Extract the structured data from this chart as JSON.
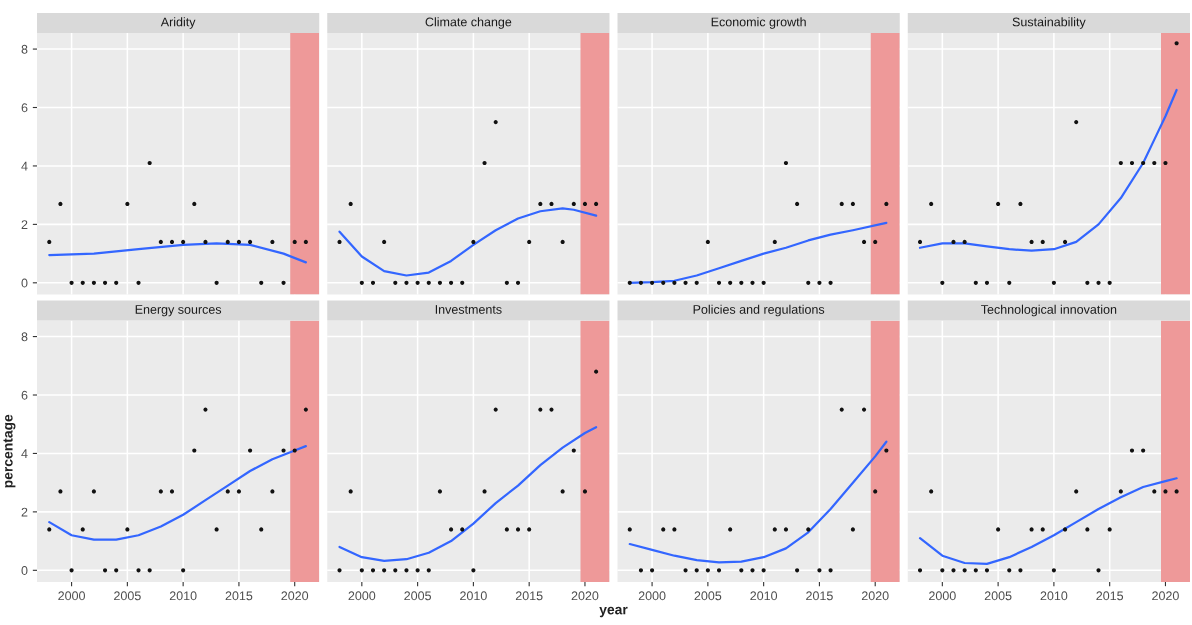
{
  "chart_data": [
    {
      "type": "scatter",
      "title": "Aridity",
      "tick_labels": "y",
      "x": [
        1998,
        1999,
        2000,
        2001,
        2002,
        2003,
        2004,
        2005,
        2006,
        2007,
        2008,
        2009,
        2010,
        2011,
        2012,
        2013,
        2014,
        2015,
        2016,
        2017,
        2018,
        2019,
        2020,
        2021
      ],
      "xlim": [
        1996.9,
        2022.2
      ],
      "ylim": [
        -0.4,
        8.55
      ],
      "xticks": [
        2000,
        2005,
        2010,
        2015,
        2020
      ],
      "yticks": [
        0,
        2,
        4,
        6,
        8
      ],
      "grid": true,
      "bands": [
        {
          "axis": "x",
          "from": 2019.6,
          "to": 2022.2,
          "color": "#ee9999"
        }
      ],
      "series": [
        {
          "marker": "circle",
          "color": "#111111",
          "values": [
            1.4,
            2.7,
            0,
            0,
            0,
            0,
            0,
            2.7,
            0,
            4.1,
            1.4,
            1.4,
            1.4,
            2.7,
            1.4,
            0,
            1.4,
            1.4,
            1.4,
            0,
            1.4,
            0,
            1.4,
            1.4
          ]
        },
        {
          "type": "line",
          "marker": "none",
          "color": "#3366ff",
          "x": [
            1998,
            2002,
            2006,
            2010,
            2013,
            2016,
            2019,
            2021
          ],
          "values": [
            0.95,
            1.0,
            1.15,
            1.3,
            1.35,
            1.3,
            1.0,
            0.7
          ]
        }
      ]
    },
    {
      "type": "scatter",
      "title": "Climate change",
      "tick_labels": false,
      "x": [
        1998,
        1999,
        2000,
        2001,
        2002,
        2003,
        2004,
        2005,
        2006,
        2007,
        2008,
        2009,
        2010,
        2011,
        2012,
        2013,
        2014,
        2015,
        2016,
        2017,
        2018,
        2019,
        2020,
        2021
      ],
      "xlim": [
        1996.9,
        2022.2
      ],
      "ylim": [
        -0.4,
        8.55
      ],
      "xticks": [
        2000,
        2005,
        2010,
        2015,
        2020
      ],
      "yticks": [
        0,
        2,
        4,
        6,
        8
      ],
      "grid": true,
      "bands": [
        {
          "axis": "x",
          "from": 2019.6,
          "to": 2022.2,
          "color": "#ee9999"
        }
      ],
      "series": [
        {
          "marker": "circle",
          "color": "#111111",
          "values": [
            1.4,
            2.7,
            0,
            0,
            1.4,
            0,
            0,
            0,
            0,
            0,
            0,
            0,
            1.4,
            4.1,
            5.5,
            0,
            0,
            1.4,
            2.7,
            2.7,
            1.4,
            2.7,
            2.7,
            2.7
          ]
        },
        {
          "type": "line",
          "marker": "none",
          "color": "#3366ff",
          "x": [
            1998,
            2000,
            2002,
            2004,
            2006,
            2008,
            2010,
            2012,
            2014,
            2016,
            2018,
            2019,
            2021
          ],
          "values": [
            1.75,
            0.9,
            0.4,
            0.25,
            0.35,
            0.75,
            1.3,
            1.8,
            2.2,
            2.45,
            2.55,
            2.5,
            2.3
          ]
        }
      ]
    },
    {
      "type": "scatter",
      "title": "Economic growth",
      "tick_labels": false,
      "x": [
        1998,
        1999,
        2000,
        2001,
        2002,
        2003,
        2004,
        2005,
        2006,
        2007,
        2008,
        2009,
        2010,
        2011,
        2012,
        2013,
        2014,
        2015,
        2016,
        2017,
        2018,
        2019,
        2020,
        2021
      ],
      "xlim": [
        1996.9,
        2022.2
      ],
      "ylim": [
        -0.4,
        8.55
      ],
      "xticks": [
        2000,
        2005,
        2010,
        2015,
        2020
      ],
      "yticks": [
        0,
        2,
        4,
        6,
        8
      ],
      "grid": true,
      "bands": [
        {
          "axis": "x",
          "from": 2019.6,
          "to": 2022.2,
          "color": "#ee9999"
        }
      ],
      "series": [
        {
          "marker": "circle",
          "color": "#111111",
          "values": [
            0,
            0,
            0,
            0,
            0,
            0,
            0,
            1.4,
            0,
            0,
            0,
            0,
            0,
            1.4,
            4.1,
            2.7,
            0,
            0,
            0,
            2.7,
            2.7,
            1.4,
            1.4,
            2.7
          ]
        },
        {
          "type": "line",
          "marker": "none",
          "color": "#3366ff",
          "x": [
            1998,
            2000,
            2002,
            2004,
            2006,
            2008,
            2010,
            2012,
            2014,
            2016,
            2018,
            2021
          ],
          "values": [
            0,
            0.02,
            0.07,
            0.25,
            0.5,
            0.75,
            1.0,
            1.2,
            1.45,
            1.65,
            1.8,
            2.05
          ]
        }
      ]
    },
    {
      "type": "scatter",
      "title": "Sustainability",
      "tick_labels": false,
      "x": [
        1998,
        1999,
        2000,
        2001,
        2002,
        2003,
        2004,
        2005,
        2006,
        2007,
        2008,
        2009,
        2010,
        2011,
        2012,
        2013,
        2014,
        2015,
        2016,
        2017,
        2018,
        2019,
        2020,
        2021
      ],
      "xlim": [
        1996.9,
        2022.2
      ],
      "ylim": [
        -0.4,
        8.55
      ],
      "xticks": [
        2000,
        2005,
        2010,
        2015,
        2020
      ],
      "yticks": [
        0,
        2,
        4,
        6,
        8
      ],
      "grid": true,
      "bands": [
        {
          "axis": "x",
          "from": 2019.6,
          "to": 2022.2,
          "color": "#ee9999"
        }
      ],
      "series": [
        {
          "marker": "circle",
          "color": "#111111",
          "values": [
            1.4,
            2.7,
            0,
            1.4,
            1.4,
            0,
            0,
            2.7,
            0,
            2.7,
            1.4,
            1.4,
            0,
            1.4,
            5.5,
            0,
            0,
            0,
            4.1,
            4.1,
            4.1,
            4.1,
            4.1,
            8.2
          ]
        },
        {
          "type": "line",
          "marker": "none",
          "color": "#3366ff",
          "x": [
            1998,
            2000,
            2002,
            2004,
            2006,
            2008,
            2010,
            2012,
            2014,
            2016,
            2018,
            2019,
            2020,
            2021
          ],
          "values": [
            1.2,
            1.35,
            1.35,
            1.25,
            1.15,
            1.1,
            1.15,
            1.4,
            2.0,
            2.9,
            4.1,
            4.9,
            5.7,
            6.6
          ]
        }
      ]
    },
    {
      "type": "scatter",
      "title": "Energy sources",
      "ylabel": "percentage",
      "x": [
        1998,
        1999,
        2000,
        2001,
        2002,
        2003,
        2004,
        2005,
        2006,
        2007,
        2008,
        2009,
        2010,
        2011,
        2012,
        2013,
        2014,
        2015,
        2016,
        2017,
        2018,
        2019,
        2020,
        2021
      ],
      "xlim": [
        1996.9,
        2022.2
      ],
      "ylim": [
        -0.4,
        8.55
      ],
      "xticks": [
        2000,
        2005,
        2010,
        2015,
        2020
      ],
      "yticks": [
        0,
        2,
        4,
        6,
        8
      ],
      "grid": true,
      "bands": [
        {
          "axis": "x",
          "from": 2019.6,
          "to": 2022.2,
          "color": "#ee9999"
        }
      ],
      "series": [
        {
          "marker": "circle",
          "color": "#111111",
          "values": [
            1.4,
            2.7,
            0,
            1.4,
            2.7,
            0,
            0,
            1.4,
            0,
            0,
            2.7,
            2.7,
            0,
            4.1,
            5.5,
            1.4,
            2.7,
            2.7,
            4.1,
            1.4,
            2.7,
            4.1,
            4.1,
            5.5
          ]
        },
        {
          "type": "line",
          "marker": "none",
          "color": "#3366ff",
          "x": [
            1998,
            2000,
            2002,
            2004,
            2006,
            2008,
            2010,
            2012,
            2014,
            2016,
            2018,
            2020,
            2021
          ],
          "values": [
            1.65,
            1.2,
            1.05,
            1.05,
            1.2,
            1.5,
            1.9,
            2.4,
            2.9,
            3.4,
            3.8,
            4.1,
            4.25
          ]
        }
      ]
    },
    {
      "type": "scatter",
      "title": "Investments",
      "xlabel": "year",
      "tick_labels": "x",
      "x": [
        1998,
        1999,
        2000,
        2001,
        2002,
        2003,
        2004,
        2005,
        2006,
        2007,
        2008,
        2009,
        2010,
        2011,
        2012,
        2013,
        2014,
        2015,
        2016,
        2017,
        2018,
        2019,
        2020,
        2021
      ],
      "xlim": [
        1996.9,
        2022.2
      ],
      "ylim": [
        -0.4,
        8.55
      ],
      "xticks": [
        2000,
        2005,
        2010,
        2015,
        2020
      ],
      "yticks": [
        0,
        2,
        4,
        6,
        8
      ],
      "grid": true,
      "bands": [
        {
          "axis": "x",
          "from": 2019.6,
          "to": 2022.2,
          "color": "#ee9999"
        }
      ],
      "series": [
        {
          "marker": "circle",
          "color": "#111111",
          "values": [
            0,
            2.7,
            0,
            0,
            0,
            0,
            0,
            0,
            0,
            2.7,
            1.4,
            1.4,
            0,
            2.7,
            5.5,
            1.4,
            1.4,
            1.4,
            5.5,
            5.5,
            2.7,
            4.1,
            2.7,
            6.8
          ]
        },
        {
          "type": "line",
          "marker": "none",
          "color": "#3366ff",
          "x": [
            1998,
            2000,
            2002,
            2004,
            2006,
            2008,
            2010,
            2012,
            2014,
            2016,
            2018,
            2020,
            2021
          ],
          "values": [
            0.8,
            0.45,
            0.32,
            0.38,
            0.6,
            1.0,
            1.6,
            2.3,
            2.9,
            3.6,
            4.2,
            4.7,
            4.9
          ]
        }
      ]
    },
    {
      "type": "scatter",
      "title": "Policies and regulations",
      "tick_labels": "x",
      "x": [
        1998,
        1999,
        2000,
        2001,
        2002,
        2003,
        2004,
        2005,
        2006,
        2007,
        2008,
        2009,
        2010,
        2011,
        2012,
        2013,
        2014,
        2015,
        2016,
        2017,
        2018,
        2019,
        2020,
        2021
      ],
      "xlim": [
        1996.9,
        2022.2
      ],
      "ylim": [
        -0.4,
        8.55
      ],
      "xticks": [
        2000,
        2005,
        2010,
        2015,
        2020
      ],
      "yticks": [
        0,
        2,
        4,
        6,
        8
      ],
      "grid": true,
      "bands": [
        {
          "axis": "x",
          "from": 2019.6,
          "to": 2022.2,
          "color": "#ee9999"
        }
      ],
      "series": [
        {
          "marker": "circle",
          "color": "#111111",
          "values": [
            1.4,
            0,
            0,
            1.4,
            1.4,
            0,
            0,
            0,
            0,
            1.4,
            0,
            0,
            0,
            1.4,
            1.4,
            0,
            1.4,
            0,
            0,
            5.5,
            1.4,
            5.5,
            2.7,
            4.1
          ]
        },
        {
          "type": "line",
          "marker": "none",
          "color": "#3366ff",
          "x": [
            1998,
            2000,
            2002,
            2004,
            2006,
            2008,
            2010,
            2012,
            2014,
            2016,
            2018,
            2020,
            2021
          ],
          "values": [
            0.9,
            0.7,
            0.5,
            0.35,
            0.27,
            0.3,
            0.45,
            0.75,
            1.3,
            2.1,
            3.0,
            3.9,
            4.4
          ]
        }
      ]
    },
    {
      "type": "scatter",
      "title": "Technological innovation",
      "tick_labels": "x",
      "x": [
        1998,
        1999,
        2000,
        2001,
        2002,
        2003,
        2004,
        2005,
        2006,
        2007,
        2008,
        2009,
        2010,
        2011,
        2012,
        2013,
        2014,
        2015,
        2016,
        2017,
        2018,
        2019,
        2020,
        2021
      ],
      "xlim": [
        1996.9,
        2022.2
      ],
      "ylim": [
        -0.4,
        8.55
      ],
      "xticks": [
        2000,
        2005,
        2010,
        2015,
        2020
      ],
      "yticks": [
        0,
        2,
        4,
        6,
        8
      ],
      "grid": true,
      "bands": [
        {
          "axis": "x",
          "from": 2019.6,
          "to": 2022.2,
          "color": "#ee9999"
        }
      ],
      "series": [
        {
          "marker": "circle",
          "color": "#111111",
          "values": [
            0,
            2.7,
            0,
            0,
            0,
            0,
            0,
            1.4,
            0,
            0,
            1.4,
            1.4,
            0,
            1.4,
            2.7,
            1.4,
            0,
            1.4,
            2.7,
            4.1,
            4.1,
            2.7,
            2.7,
            2.7
          ]
        },
        {
          "type": "line",
          "marker": "none",
          "color": "#3366ff",
          "x": [
            1998,
            2000,
            2002,
            2004,
            2006,
            2008,
            2010,
            2012,
            2014,
            2016,
            2018,
            2020,
            2021
          ],
          "values": [
            1.1,
            0.5,
            0.25,
            0.22,
            0.45,
            0.8,
            1.2,
            1.65,
            2.1,
            2.5,
            2.85,
            3.05,
            3.15
          ]
        }
      ]
    }
  ]
}
